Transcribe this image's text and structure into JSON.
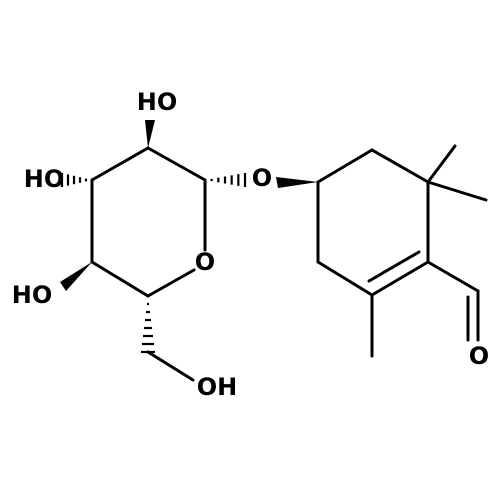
{
  "atoms": [
    {
      "label": "HO"
    },
    {
      "label": "HO"
    },
    {
      "label": "HO"
    },
    {
      "label": "O"
    },
    {
      "label": "O"
    },
    {
      "label": "OH"
    },
    {
      "label": "O"
    }
  ]
}
